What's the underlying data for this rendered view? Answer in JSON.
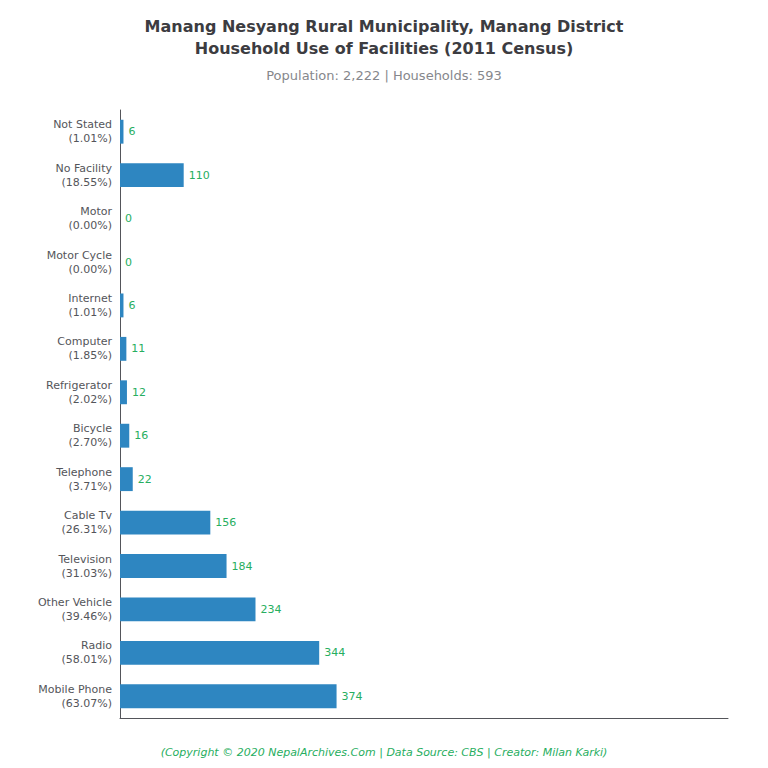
{
  "chart_data": {
    "type": "bar",
    "title": "Manang Nesyang Rural Municipality, Manang District\nHousehold Use of Facilities (2011 Census)",
    "subtitle": "Population: 2,222 | Households: 593",
    "annotations": [
      "(Copyright © 2020 NepalArchives.Com | Data Source: CBS | Creator: Milan Karki)"
    ],
    "categories": [
      "Not Stated\n(1.01%)",
      "No Facility\n(18.55%)",
      "Motor\n(0.00%)",
      "Motor Cycle\n(0.00%)",
      "Internet\n(1.01%)",
      "Computer\n(1.85%)",
      "Refrigerator\n(2.02%)",
      "Bicycle\n(2.70%)",
      "Telephone\n(3.71%)",
      "Cable Tv\n(26.31%)",
      "Television\n(31.03%)",
      "Other Vehicle\n(39.46%)",
      "Radio\n(58.01%)",
      "Mobile Phone\n(63.07%)"
    ],
    "values": [
      6,
      110,
      0,
      0,
      6,
      11,
      12,
      16,
      22,
      156,
      184,
      234,
      344,
      374
    ],
    "color": "#2e86c1",
    "orientation": "horizontal",
    "xlim": [
      0,
      1050
    ],
    "grid": false,
    "data_labels": true,
    "tick_labels": "y"
  }
}
